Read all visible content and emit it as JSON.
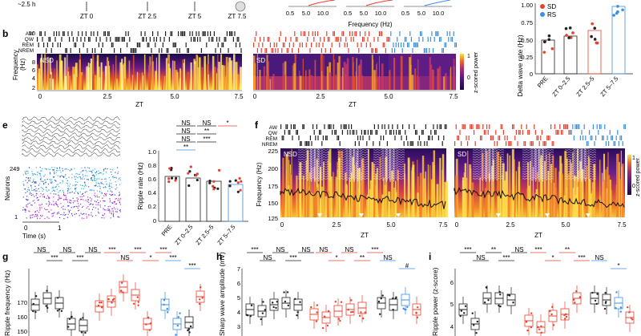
{
  "panel_letters": {
    "b": "b",
    "e": "e",
    "f": "f",
    "g": "g",
    "h": "h",
    "i": "i"
  },
  "top_strip": {
    "fragment_left": "~2.5 h",
    "zt_marks": [
      "ZT 0",
      "ZT 2.5",
      "ZT 5",
      "ZT 7.5"
    ],
    "freq_ticks": [
      "0.5",
      "5.0",
      "10.0"
    ],
    "freq_label": "Frequency (Hz)"
  },
  "state_labels": [
    "AW",
    "QW",
    "REM",
    "NREM"
  ],
  "panel_b": {
    "spec_left_tag": "NSD",
    "spec_right_tag": "SD",
    "y_ticks": [
      "10",
      "8",
      "6",
      "4",
      "2"
    ],
    "y_label_top": "Frequency",
    "y_label_bot": "(Hz)",
    "x_ticks": [
      "0",
      "2.5",
      "5.0",
      "7.5"
    ],
    "x_label": "ZT",
    "colorbar_ticks": [
      "1",
      "0"
    ],
    "colorbar_label": "z-scored power"
  },
  "panel_delta": {
    "legend": [
      {
        "name": "SD",
        "color": "#e8412f"
      },
      {
        "name": "RS",
        "color": "#3d8fe0"
      }
    ],
    "y_label": "Delta wave rate (Hz)",
    "y_ticks": [
      "1.00",
      "0.75",
      "0.50",
      "0.25",
      "0"
    ],
    "x_ticks": [
      "PRE",
      "ZT 0–2.5",
      "ZT 2.5–5",
      "ZT 5–7.5"
    ]
  },
  "panel_e": {
    "neuron_ticks": [
      "249",
      "1"
    ],
    "neuron_label": "Neurons",
    "time_label": "Time (s)",
    "time_ticks": [
      "0",
      "1"
    ]
  },
  "panel_ripple_rate": {
    "sig_rows": [
      [
        "NS",
        "NS",
        "*"
      ],
      [
        "NS",
        "**",
        ""
      ],
      [
        "NS",
        "***",
        ""
      ],
      [
        "**",
        "",
        ""
      ]
    ],
    "y_label": "Ripple rate (Hz)",
    "y_ticks": [
      "1.0",
      "0.8",
      "0.6",
      "0.4",
      "0.2",
      "0"
    ],
    "x_ticks": [
      "PRE",
      "ZT 0–2.5",
      "ZT 2.5–5",
      "ZT 5–7.5"
    ]
  },
  "panel_f": {
    "spec_left_tag": "NSD",
    "spec_right_tag": "SD",
    "y_label": "Frequency (Hz)",
    "y_ticks": [
      "225",
      "200",
      "175",
      "150",
      "125"
    ],
    "x_ticks_left": [
      "0",
      "2.5",
      "5.0",
      "7.5"
    ],
    "x_ticks_right": [
      "0",
      "2.5",
      "5.0",
      "7.5"
    ],
    "x_label": "ZT",
    "colorbar_ticks": [
      "1",
      "0"
    ],
    "colorbar_label": "z-scored power"
  },
  "panel_g": {
    "sig_black": [
      "NS",
      "***",
      "NS",
      "***",
      "NS"
    ],
    "sig_red": [
      "***",
      "NS",
      "***",
      "*",
      "***"
    ],
    "sig_blue": [
      "***",
      "***"
    ],
    "y_label": "Ripple frequency (Hz)",
    "y_ticks": [
      "170",
      "160",
      "150"
    ]
  },
  "panel_h": {
    "sig_black": [
      "***",
      "NS",
      "NS",
      "***",
      "NS"
    ],
    "sig_red": [
      "NS",
      "*",
      "NS",
      "**",
      "***"
    ],
    "sig_blue": [
      "NS",
      "#"
    ],
    "y_label": "Sharp wave amplitude (mV)",
    "y_ticks": [
      "7",
      "6",
      "5",
      "4",
      "3"
    ]
  },
  "panel_i": {
    "sig_black": [
      "***",
      "NS",
      "**",
      "***",
      "NS"
    ],
    "sig_red": [
      "***",
      "*",
      "**",
      "***"
    ],
    "sig_blue": [
      "NS",
      "*"
    ],
    "y_label": "Ripple power (z-score)",
    "y_ticks": [
      "6",
      "5",
      "4"
    ]
  },
  "colors": {
    "sd": "#e8412f",
    "rs": "#3d8fe0",
    "nsd": "#222222"
  }
}
